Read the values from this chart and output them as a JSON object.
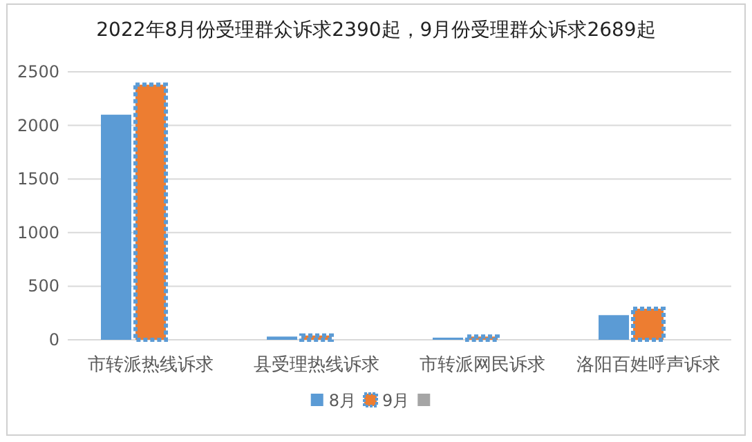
{
  "chart_data": {
    "type": "bar",
    "title": "2022年8月份受理群众诉求2390起，9月份受理群众诉求2689起",
    "categories": [
      "市转派热线诉求",
      "县受理热线诉求",
      "市转派网民诉求",
      "洛阳百姓呼声诉求"
    ],
    "series": [
      {
        "name": "8月",
        "color": "#5b9bd5",
        "values": [
          2100,
          30,
          20,
          230
        ]
      },
      {
        "name": "9月",
        "color": "#ed7d31",
        "line_style": "dotted",
        "values": [
          2380,
          40,
          30,
          290
        ]
      },
      {
        "color": "#a5a5a5",
        "values": [
          null,
          null,
          null,
          null
        ]
      }
    ],
    "ylim": [
      0,
      2500
    ],
    "yticks": [
      0,
      500,
      1000,
      1500,
      2000,
      2500
    ],
    "grid": "y",
    "legend": "bottom"
  }
}
